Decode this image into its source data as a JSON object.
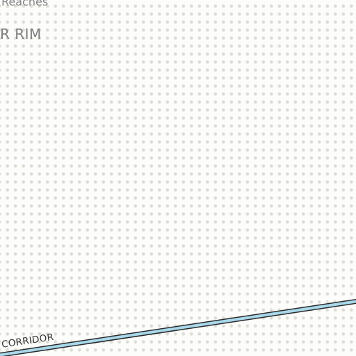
{
  "map": {
    "labels": {
      "region_upper": "Reaches",
      "region_main": "R RIM",
      "corridor": "CORRIDOR"
    },
    "colors": {
      "background": "#fcfcfa",
      "dot_pattern": "#deded6",
      "road_fill": "#a8d8ea",
      "road_casing": "#2a2a2a",
      "label_text": "#7a7a7a"
    }
  }
}
